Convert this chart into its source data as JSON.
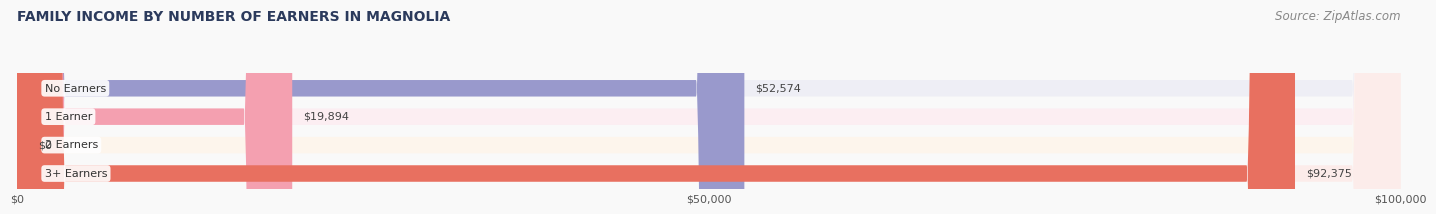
{
  "title": "FAMILY INCOME BY NUMBER OF EARNERS IN MAGNOLIA",
  "source": "Source: ZipAtlas.com",
  "categories": [
    "No Earners",
    "1 Earner",
    "2 Earners",
    "3+ Earners"
  ],
  "values": [
    52574,
    19894,
    0,
    92375
  ],
  "bar_colors": [
    "#9999cc",
    "#f4a0b0",
    "#e8c99a",
    "#e87060"
  ],
  "bg_colors": [
    "#eeeef5",
    "#fceef2",
    "#fdf5ec",
    "#fcecea"
  ],
  "value_labels": [
    "$52,574",
    "$19,894",
    "$0",
    "$92,375"
  ],
  "xlim": [
    0,
    100000
  ],
  "xticks": [
    0,
    50000,
    100000
  ],
  "xtick_labels": [
    "$0",
    "$50,000",
    "$100,000"
  ],
  "title_color": "#2b3a5c",
  "title_fontsize": 10,
  "source_fontsize": 8.5,
  "bar_height": 0.58,
  "background_color": "#f9f9f9"
}
